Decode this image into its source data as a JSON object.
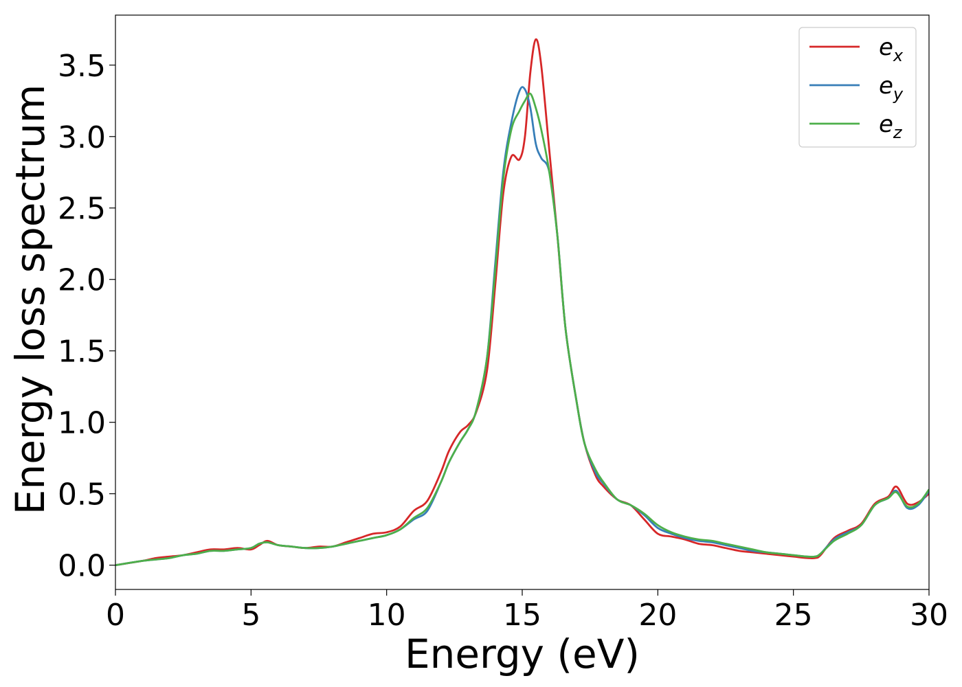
{
  "chart_data": {
    "type": "line",
    "title": "",
    "xlabel": "Energy (eV)",
    "ylabel": "Energy loss spectrum",
    "xlim": [
      0,
      30
    ],
    "ylim": [
      -0.17,
      3.85
    ],
    "xticks": [
      0,
      5,
      10,
      15,
      20,
      25,
      30
    ],
    "xtick_labels": [
      "0",
      "5",
      "10",
      "15",
      "20",
      "25",
      "30"
    ],
    "yticks": [
      0.0,
      0.5,
      1.0,
      1.5,
      2.0,
      2.5,
      3.0,
      3.5
    ],
    "ytick_labels": [
      "0.0",
      "0.5",
      "1.0",
      "1.5",
      "2.0",
      "2.5",
      "3.0",
      "3.5"
    ],
    "grid": false,
    "legend_position": "top-right",
    "series": [
      {
        "name": "e",
        "subscript": "x",
        "color": "#d62728",
        "x": [
          0,
          1,
          1.5,
          2,
          2.5,
          3,
          3.5,
          4,
          4.5,
          5,
          5.3,
          5.6,
          6,
          6.5,
          7,
          7.5,
          8,
          8.5,
          9,
          9.5,
          10,
          10.5,
          11,
          11.5,
          12,
          12.3,
          12.7,
          13,
          13.3,
          13.7,
          14,
          14.3,
          14.6,
          14.9,
          15.1,
          15.3,
          15.5,
          15.7,
          16,
          16.3,
          16.6,
          17,
          17.3,
          17.7,
          18,
          18.5,
          19,
          19.5,
          20,
          20.5,
          21,
          21.5,
          22,
          22.5,
          23,
          23.5,
          24,
          24.5,
          25,
          25.5,
          25.8,
          26,
          26.5,
          27,
          27.5,
          28,
          28.5,
          28.8,
          29.2,
          29.6,
          30
        ],
        "y": [
          0.0,
          0.03,
          0.05,
          0.06,
          0.07,
          0.09,
          0.11,
          0.11,
          0.12,
          0.11,
          0.14,
          0.17,
          0.14,
          0.13,
          0.12,
          0.13,
          0.13,
          0.16,
          0.19,
          0.22,
          0.23,
          0.27,
          0.38,
          0.45,
          0.65,
          0.8,
          0.93,
          0.98,
          1.07,
          1.36,
          1.95,
          2.6,
          2.86,
          2.84,
          3.0,
          3.45,
          3.68,
          3.5,
          2.9,
          2.3,
          1.65,
          1.15,
          0.85,
          0.63,
          0.55,
          0.46,
          0.42,
          0.32,
          0.22,
          0.2,
          0.18,
          0.15,
          0.14,
          0.12,
          0.1,
          0.09,
          0.08,
          0.07,
          0.06,
          0.05,
          0.05,
          0.07,
          0.19,
          0.24,
          0.29,
          0.43,
          0.48,
          0.55,
          0.43,
          0.44,
          0.5
        ]
      },
      {
        "name": "e",
        "subscript": "y",
        "color": "#377eb8",
        "x": [
          0,
          1,
          1.5,
          2,
          2.5,
          3,
          3.5,
          4,
          4.5,
          5,
          5.3,
          5.6,
          6,
          6.5,
          7,
          7.5,
          8,
          8.5,
          9,
          9.5,
          10,
          10.5,
          11,
          11.5,
          12,
          12.3,
          12.7,
          13,
          13.3,
          13.7,
          14,
          14.3,
          14.6,
          14.9,
          15.1,
          15.3,
          15.5,
          15.7,
          16,
          16.3,
          16.6,
          17,
          17.3,
          17.7,
          18,
          18.5,
          19,
          19.5,
          20,
          20.5,
          21,
          21.5,
          22,
          22.5,
          23,
          23.5,
          24,
          24.5,
          25,
          25.5,
          25.8,
          26,
          26.5,
          27,
          27.5,
          28,
          28.5,
          28.8,
          29.2,
          29.6,
          30
        ],
        "y": [
          0.0,
          0.03,
          0.04,
          0.05,
          0.07,
          0.08,
          0.1,
          0.1,
          0.11,
          0.12,
          0.15,
          0.16,
          0.14,
          0.13,
          0.12,
          0.12,
          0.13,
          0.15,
          0.17,
          0.19,
          0.21,
          0.25,
          0.32,
          0.38,
          0.58,
          0.72,
          0.86,
          0.95,
          1.08,
          1.45,
          2.1,
          2.75,
          3.1,
          3.32,
          3.33,
          3.2,
          2.95,
          2.85,
          2.75,
          2.3,
          1.65,
          1.15,
          0.85,
          0.65,
          0.57,
          0.46,
          0.42,
          0.35,
          0.26,
          0.22,
          0.19,
          0.17,
          0.16,
          0.14,
          0.12,
          0.1,
          0.09,
          0.08,
          0.07,
          0.06,
          0.06,
          0.08,
          0.18,
          0.23,
          0.28,
          0.42,
          0.47,
          0.52,
          0.4,
          0.42,
          0.52
        ]
      },
      {
        "name": "e",
        "subscript": "z",
        "color": "#4daf4a",
        "x": [
          0,
          1,
          1.5,
          2,
          2.5,
          3,
          3.5,
          4,
          4.5,
          5,
          5.3,
          5.6,
          6,
          6.5,
          7,
          7.5,
          8,
          8.5,
          9,
          9.5,
          10,
          10.5,
          11,
          11.5,
          12,
          12.3,
          12.7,
          13,
          13.3,
          13.7,
          14,
          14.3,
          14.6,
          14.9,
          15.1,
          15.3,
          15.5,
          15.7,
          16,
          16.3,
          16.6,
          17,
          17.3,
          17.7,
          18,
          18.5,
          19,
          19.5,
          20,
          20.5,
          21,
          21.5,
          22,
          22.5,
          23,
          23.5,
          24,
          24.5,
          25,
          25.5,
          25.8,
          26,
          26.5,
          27,
          27.5,
          28,
          28.5,
          28.8,
          29.2,
          29.6,
          30
        ],
        "y": [
          0.0,
          0.03,
          0.04,
          0.05,
          0.07,
          0.08,
          0.1,
          0.1,
          0.11,
          0.12,
          0.15,
          0.16,
          0.14,
          0.13,
          0.12,
          0.12,
          0.13,
          0.15,
          0.17,
          0.19,
          0.21,
          0.25,
          0.33,
          0.4,
          0.58,
          0.72,
          0.86,
          0.95,
          1.08,
          1.45,
          2.05,
          2.7,
          3.05,
          3.18,
          3.25,
          3.3,
          3.2,
          3.05,
          2.75,
          2.3,
          1.65,
          1.15,
          0.85,
          0.67,
          0.58,
          0.46,
          0.42,
          0.36,
          0.28,
          0.23,
          0.2,
          0.18,
          0.17,
          0.15,
          0.13,
          0.11,
          0.09,
          0.08,
          0.07,
          0.06,
          0.06,
          0.08,
          0.17,
          0.22,
          0.28,
          0.42,
          0.47,
          0.51,
          0.41,
          0.43,
          0.53
        ]
      }
    ]
  }
}
